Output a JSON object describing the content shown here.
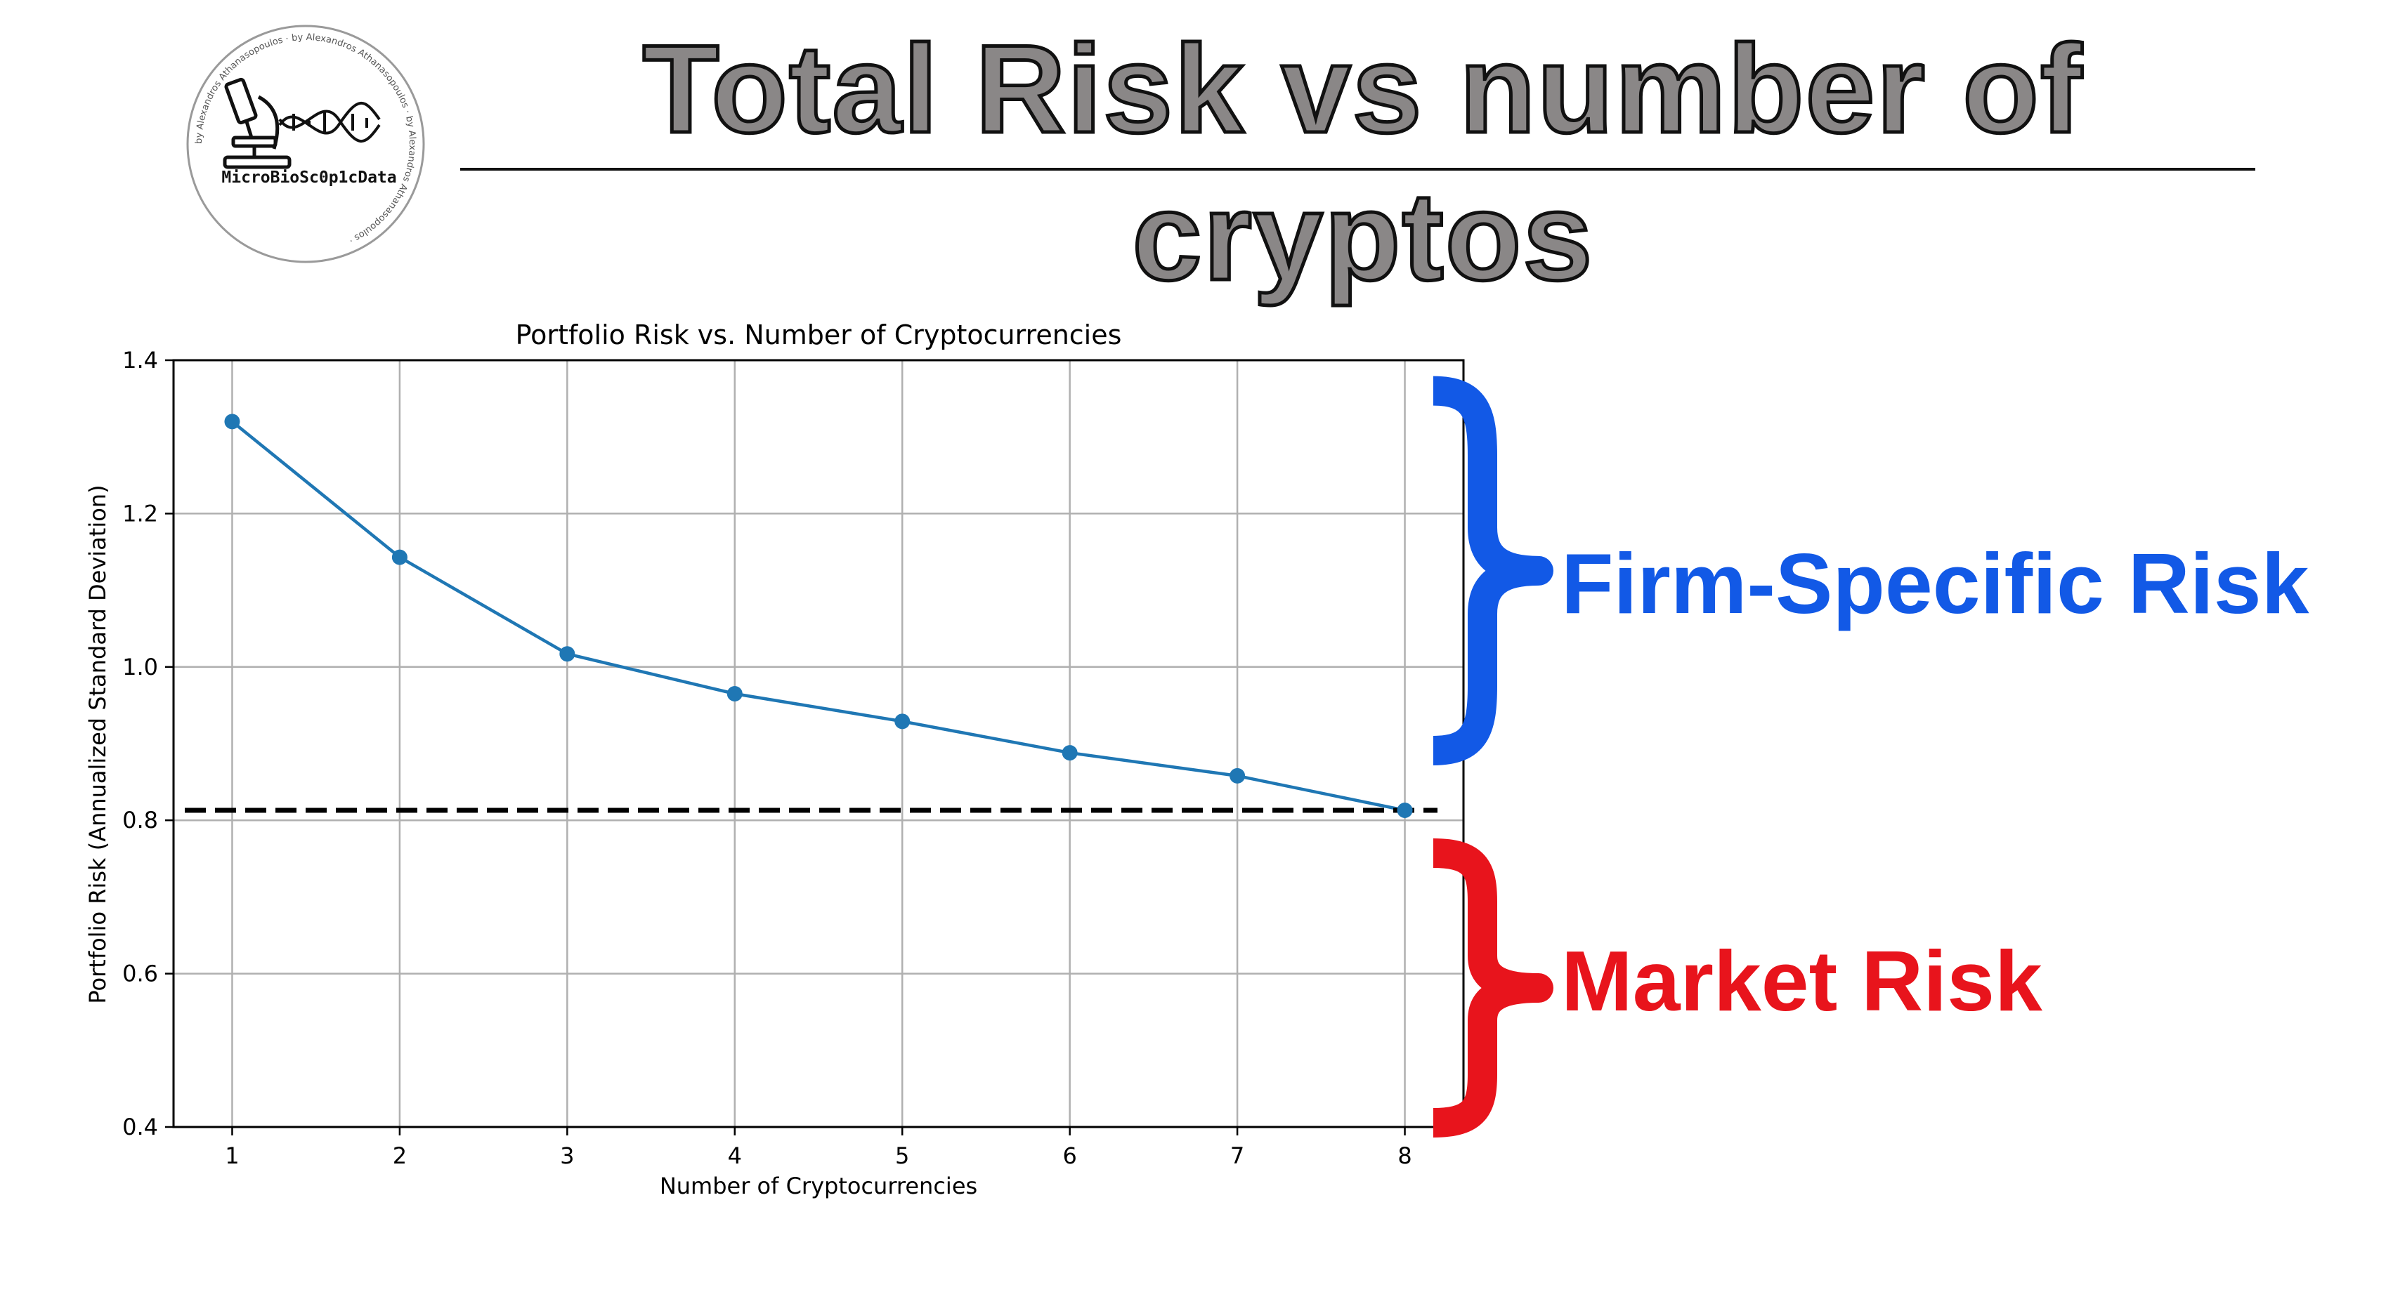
{
  "header": {
    "title": "Total Risk vs number of cryptos",
    "logo": {
      "name": "MicroBioSc0p1cData",
      "ring_text": "by Alexandros Athanasopoulos · by Alexandros Athanasopoulos · by Alexandros Athanasopoulos ·"
    }
  },
  "chart_data": {
    "type": "line",
    "title": "Portfolio Risk vs. Number of Cryptocurrencies",
    "xlabel": "Number of Cryptocurrencies",
    "ylabel": "Portfolio Risk (Annualized Standard Deviation)",
    "x": [
      1,
      2,
      3,
      4,
      5,
      6,
      7,
      8
    ],
    "series": [
      {
        "values": [
          1.32,
          1.143,
          1.017,
          0.965,
          0.929,
          0.888,
          0.858,
          0.813
        ],
        "color": "#1f77b4",
        "marker": "circle"
      }
    ],
    "reference_line": {
      "y": 0.813,
      "style": "dashed",
      "color": "#000000"
    },
    "xlim": [
      0.65,
      8.35
    ],
    "ylim": [
      0.4,
      1.4
    ],
    "xticks": [
      1,
      2,
      3,
      4,
      5,
      6,
      7,
      8
    ],
    "yticks": [
      0.4,
      0.6,
      0.8,
      1.0,
      1.2,
      1.4
    ],
    "ytick_labels": [
      "0.4",
      "0.6",
      "0.8",
      "1.0",
      "1.2",
      "1.4"
    ],
    "grid": true
  },
  "annotations": {
    "firm_specific": {
      "label": "Firm-Specific Risk",
      "color": "#1259e6",
      "y_range": [
        0.813,
        1.36
      ]
    },
    "market": {
      "label": "Market Risk",
      "color": "#e8141c",
      "y_range": [
        0.4,
        0.78
      ]
    }
  }
}
